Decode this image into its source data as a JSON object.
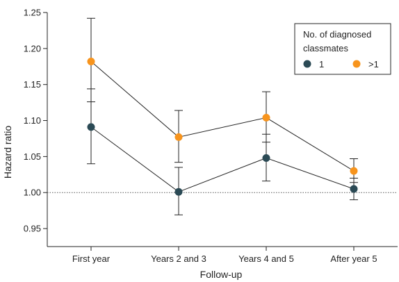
{
  "chart_data": {
    "type": "line",
    "title": "",
    "xlabel": "Follow-up",
    "ylabel": "Hazard ratio",
    "categories": [
      "First year",
      "Years 2 and 3",
      "Years 4 and 5",
      "After year 5"
    ],
    "ylim": [
      0.925,
      1.25
    ],
    "yticks": [
      "0.95",
      "1.00",
      "1.05",
      "1.10",
      "1.15",
      "1.20",
      "1.25"
    ],
    "reference_line": 1.0,
    "grid": false,
    "legend": {
      "title_lines": [
        "No. of diagnosed",
        "classmates"
      ],
      "placement": "top-right"
    },
    "series": [
      {
        "name": "1",
        "color": "#2b4a55",
        "values": [
          1.091,
          1.001,
          1.048,
          1.005
        ],
        "lower": [
          1.04,
          0.969,
          1.016,
          0.99
        ],
        "upper": [
          1.144,
          1.035,
          1.081,
          1.02
        ]
      },
      {
        "name": ">1",
        "color": "#f7941d",
        "values": [
          1.182,
          1.077,
          1.104,
          1.03
        ],
        "lower": [
          1.126,
          1.042,
          1.07,
          1.014
        ],
        "upper": [
          1.242,
          1.114,
          1.14,
          1.047
        ]
      }
    ]
  }
}
